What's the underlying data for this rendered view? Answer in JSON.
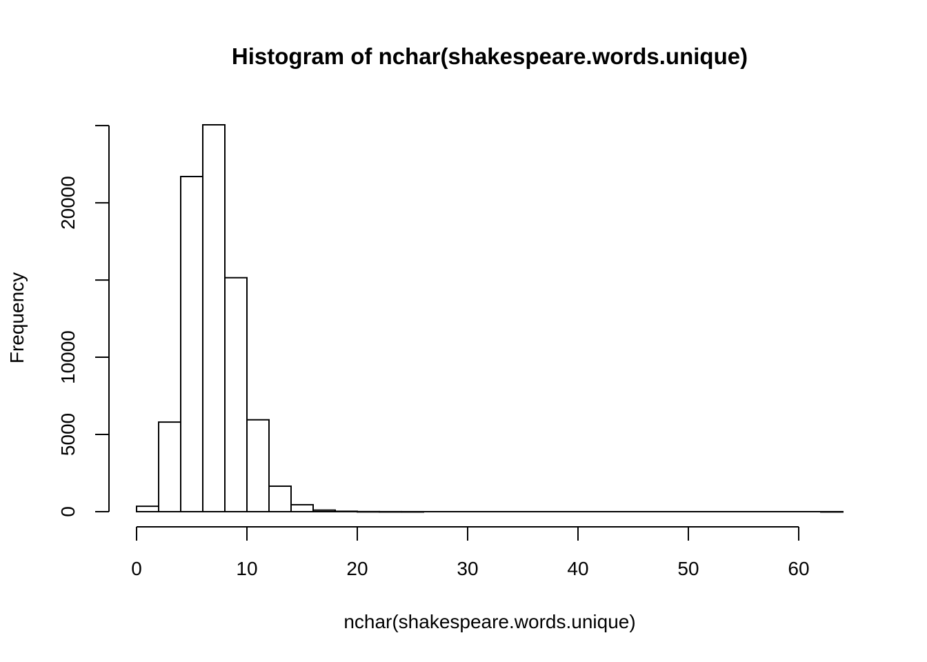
{
  "chart_data": {
    "type": "bar",
    "title": "Histogram of nchar(shakespeare.words.unique)",
    "xlabel": "nchar(shakespeare.words.unique)",
    "ylabel": "Frequency",
    "bin_width": 2,
    "bins": [
      {
        "start": 0,
        "end": 2,
        "count": 350
      },
      {
        "start": 2,
        "end": 4,
        "count": 5800
      },
      {
        "start": 4,
        "end": 6,
        "count": 21700
      },
      {
        "start": 6,
        "end": 8,
        "count": 25050
      },
      {
        "start": 8,
        "end": 10,
        "count": 15150
      },
      {
        "start": 10,
        "end": 12,
        "count": 5950
      },
      {
        "start": 12,
        "end": 14,
        "count": 1650
      },
      {
        "start": 14,
        "end": 16,
        "count": 450
      },
      {
        "start": 16,
        "end": 18,
        "count": 100
      },
      {
        "start": 18,
        "end": 20,
        "count": 25
      },
      {
        "start": 20,
        "end": 22,
        "count": 6
      },
      {
        "start": 22,
        "end": 24,
        "count": 2
      },
      {
        "start": 24,
        "end": 26,
        "count": 1
      },
      {
        "start": 26,
        "end": 28,
        "count": 0
      },
      {
        "start": 28,
        "end": 30,
        "count": 0
      },
      {
        "start": 30,
        "end": 32,
        "count": 0
      },
      {
        "start": 32,
        "end": 34,
        "count": 0
      },
      {
        "start": 34,
        "end": 36,
        "count": 0
      },
      {
        "start": 36,
        "end": 38,
        "count": 0
      },
      {
        "start": 38,
        "end": 40,
        "count": 0
      },
      {
        "start": 40,
        "end": 42,
        "count": 0
      },
      {
        "start": 42,
        "end": 44,
        "count": 0
      },
      {
        "start": 44,
        "end": 46,
        "count": 0
      },
      {
        "start": 46,
        "end": 48,
        "count": 0
      },
      {
        "start": 48,
        "end": 50,
        "count": 0
      },
      {
        "start": 50,
        "end": 52,
        "count": 0
      },
      {
        "start": 52,
        "end": 54,
        "count": 0
      },
      {
        "start": 54,
        "end": 56,
        "count": 0
      },
      {
        "start": 56,
        "end": 58,
        "count": 0
      },
      {
        "start": 58,
        "end": 60,
        "count": 0
      },
      {
        "start": 60,
        "end": 62,
        "count": 0
      },
      {
        "start": 62,
        "end": 64,
        "count": 1
      }
    ],
    "xticks": [
      0,
      10,
      20,
      30,
      40,
      50,
      60
    ],
    "yticks": [
      0,
      5000,
      10000,
      15000,
      20000,
      25000
    ],
    "ytick_labels": [
      "0",
      "5000",
      "10000",
      "",
      "20000",
      ""
    ],
    "xlim": [
      0,
      64
    ],
    "ylim": [
      0,
      25050
    ],
    "grid": false,
    "legend": "none",
    "colors": {
      "bar_fill": "#ffffff",
      "bar_stroke": "#000000"
    }
  }
}
